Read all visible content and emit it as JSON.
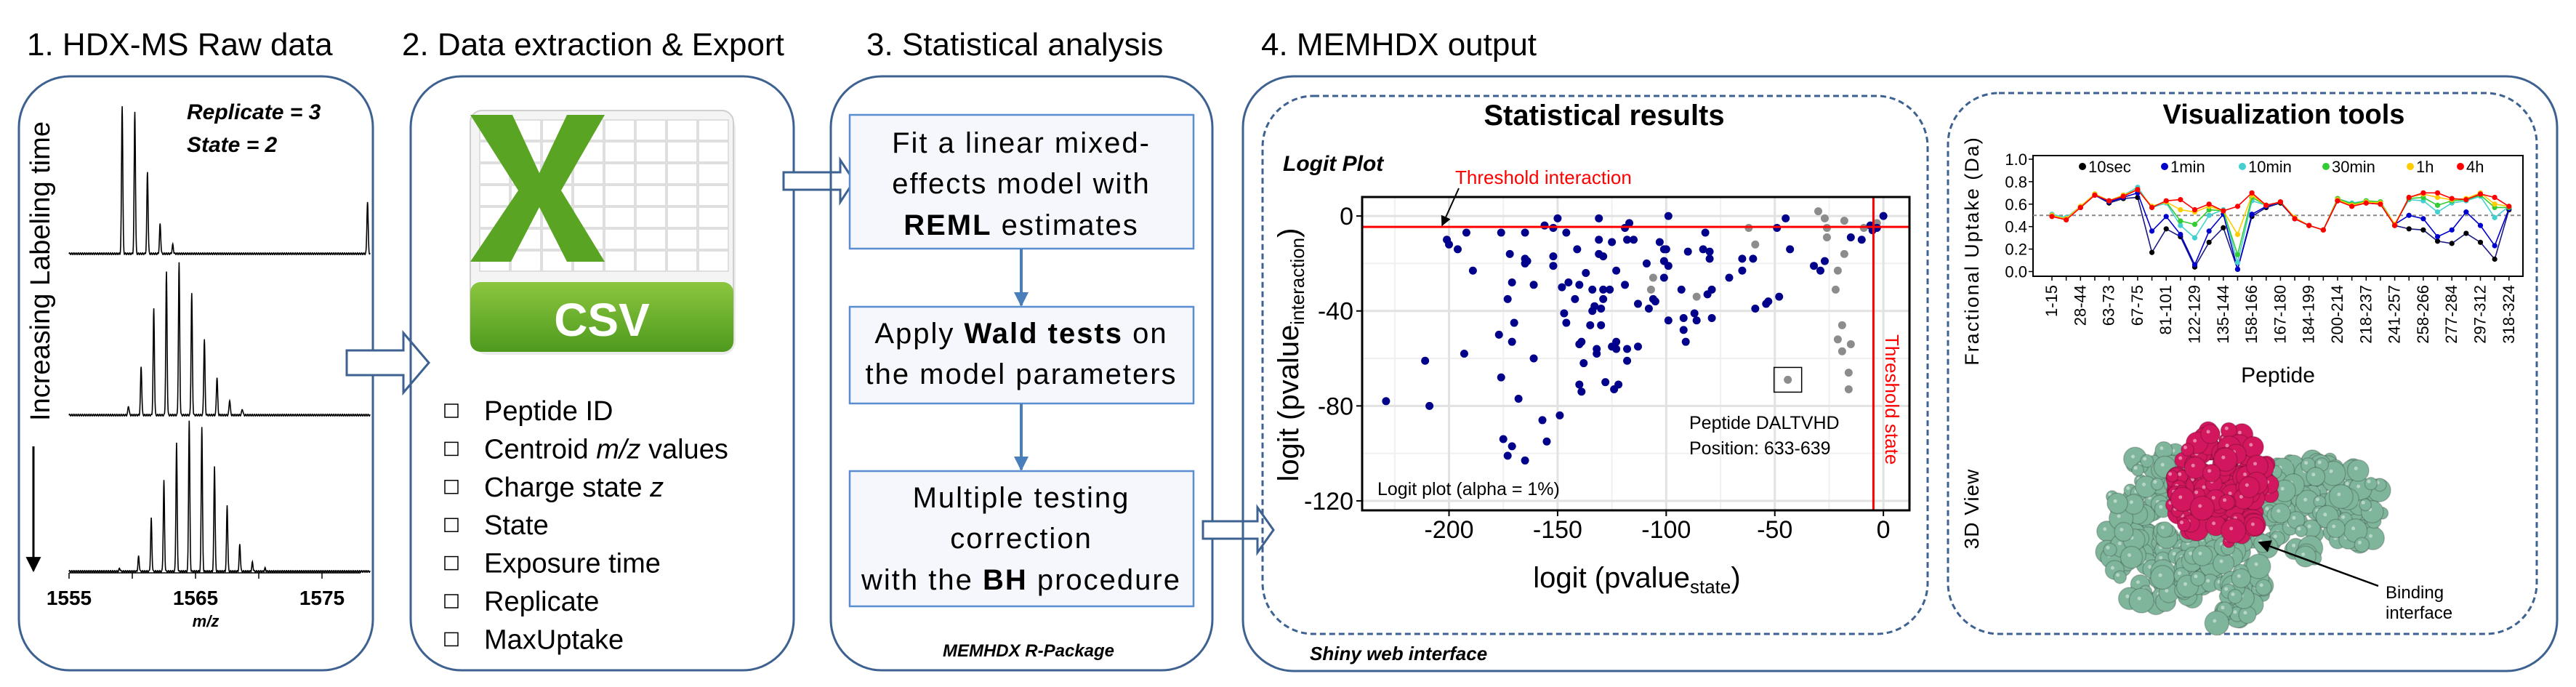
{
  "panels": {
    "raw": {
      "title": "1. HDX-MS Raw data",
      "side_label": "Increasing Labeling time",
      "replicate": "Replicate = 3",
      "state": "State = 2",
      "x_ticks": [
        "1555",
        "1565",
        "1575"
      ],
      "x_label": "m/z"
    },
    "extract": {
      "title": "2. Data extraction & Export",
      "icon_label": "CSV",
      "fields": [
        {
          "pre": "Peptide ID",
          "it": "",
          "post": ""
        },
        {
          "pre": "Centroid ",
          "it": "m/z",
          "post": " values"
        },
        {
          "pre": "Charge state ",
          "it": "z",
          "post": ""
        },
        {
          "pre": "State",
          "it": "",
          "post": ""
        },
        {
          "pre": "Exposure time",
          "it": "",
          "post": ""
        },
        {
          "pre": "Replicate",
          "it": "",
          "post": ""
        },
        {
          "pre": "MaxUptake",
          "it": "",
          "post": ""
        }
      ]
    },
    "stats": {
      "title": "3. Statistical analysis",
      "step1": {
        "l1": "Fit a linear mixed-",
        "l2": "effects model with",
        "l3_bold": "REML",
        "l3": " estimates"
      },
      "step2": {
        "l1_pre": "Apply ",
        "l1_bold": "Wald tests",
        "l1_post": " on",
        "l2": "the model parameters"
      },
      "step3": {
        "l1": "Multiple testing",
        "l2": "correction",
        "l3_pre": "with the ",
        "l3_bold": "BH",
        "l3_post": " procedure"
      },
      "footer": "MEMHDX R-Package"
    },
    "output": {
      "title": "4. MEMHDX output",
      "footer": "Shiny web interface",
      "stat_title": "Statistical results",
      "vis_title": "Visualization tools",
      "view3d_label": "3D View",
      "binding_l1": "Binding",
      "binding_l2": "interface",
      "colors": {
        "protein": "#7fb59a",
        "interface": "#d3175f",
        "frame": "#3d6190"
      }
    }
  },
  "chart_data": [
    {
      "type": "scatter",
      "title": "Logit Plot",
      "xlabel_main": "logit (pvalue",
      "xlabel_sub": "state",
      "xlabel_end": ")",
      "ylabel_main": "logit (pvalue",
      "ylabel_sub": "interaction",
      "ylabel_end": ")",
      "xlim": [
        -240,
        12
      ],
      "ylim": [
        -124,
        8
      ],
      "x_ticks": [
        -200,
        -150,
        -100,
        -50,
        0
      ],
      "y_ticks": [
        0,
        -40,
        -80,
        -120
      ],
      "x_tick_labels": [
        "-200",
        "-150",
        "-100",
        "-50",
        "0"
      ],
      "y_tick_labels": [
        "0",
        "-40",
        "-80",
        "-120"
      ],
      "grid": true,
      "threshold_interaction": -4.6,
      "threshold_state": -4.6,
      "threshold_interaction_label": "Threshold interaction",
      "threshold_state_label": "Threshold state",
      "annotation_l1": "Peptide DALTVHD",
      "annotation_l2": "Position: 633-639",
      "highlight": [
        -44,
        -69
      ],
      "note": "Logit plot (alpha = 1%)",
      "colors": {
        "significant": "#00008b",
        "not_significant": "#8c8c8c",
        "threshold": "#ff0000"
      },
      "significant": [
        [
          -229,
          -78
        ],
        [
          -211,
          -61
        ],
        [
          -209,
          -80
        ],
        [
          -201,
          -10
        ],
        [
          -200,
          -12
        ],
        [
          -196,
          -14
        ],
        [
          -192,
          -7
        ],
        [
          -189,
          -23
        ],
        [
          -193,
          -58
        ],
        [
          -177,
          -50
        ],
        [
          -176,
          -7
        ],
        [
          -176,
          -68
        ],
        [
          -175,
          -94
        ],
        [
          -173,
          -101
        ],
        [
          -171,
          -97
        ],
        [
          -173,
          -35
        ],
        [
          -172,
          -16
        ],
        [
          -171,
          -28
        ],
        [
          -171,
          -53
        ],
        [
          -170,
          -45
        ],
        [
          -168,
          -77
        ],
        [
          -165,
          -18
        ],
        [
          -165,
          -7
        ],
        [
          -165,
          -20
        ],
        [
          -164,
          -19
        ],
        [
          -165,
          -103
        ],
        [
          -161,
          -29
        ],
        [
          -161,
          -60
        ],
        [
          -157,
          -86
        ],
        [
          -156,
          -4
        ],
        [
          -155,
          -95
        ],
        [
          -152,
          -17
        ],
        [
          -152,
          -5
        ],
        [
          -152,
          -21
        ],
        [
          -150,
          -1
        ],
        [
          -149,
          -84
        ],
        [
          -148,
          -30
        ],
        [
          -147,
          -41
        ],
        [
          -146,
          -45
        ],
        [
          -146,
          -7
        ],
        [
          -145,
          -28
        ],
        [
          -142,
          -35
        ],
        [
          -141,
          -14
        ],
        [
          -140,
          -29
        ],
        [
          -140,
          -54
        ],
        [
          -140,
          -71
        ],
        [
          -139,
          -74
        ],
        [
          -139,
          -53
        ],
        [
          -138,
          -62
        ],
        [
          -137,
          -24
        ],
        [
          -135,
          -46
        ],
        [
          -134,
          -31
        ],
        [
          -134,
          -40
        ],
        [
          -133,
          -38
        ],
        [
          -132,
          -58
        ],
        [
          -132,
          -56
        ],
        [
          -131,
          -1
        ],
        [
          -131,
          -10
        ],
        [
          -130,
          -39
        ],
        [
          -130,
          -46
        ],
        [
          -131,
          -16
        ],
        [
          -129,
          -17
        ],
        [
          -129,
          -35
        ],
        [
          -129,
          -31
        ],
        [
          -128,
          -70
        ],
        [
          -126,
          -31
        ],
        [
          -125,
          -11
        ],
        [
          -125,
          -55
        ],
        [
          -124,
          -73
        ],
        [
          -123,
          -23
        ],
        [
          -123,
          -53
        ],
        [
          -123,
          -56
        ],
        [
          -122,
          -71
        ],
        [
          -119,
          -5
        ],
        [
          -119,
          -29
        ],
        [
          -118,
          -61
        ],
        [
          -118,
          -56
        ],
        [
          -118,
          -10
        ],
        [
          -117,
          -3
        ],
        [
          -115,
          -10
        ],
        [
          -113,
          -37
        ],
        [
          -113,
          -55
        ],
        [
          -109,
          -20
        ],
        [
          -108,
          -39
        ],
        [
          -106,
          -35
        ],
        [
          -105,
          -36
        ],
        [
          -103,
          -11
        ],
        [
          -101,
          -26
        ],
        [
          -101,
          -14
        ],
        [
          -101,
          -19
        ],
        [
          -100,
          -14
        ],
        [
          -99,
          0
        ],
        [
          -99,
          -21
        ],
        [
          -99,
          -44
        ],
        [
          -93,
          -31
        ],
        [
          -92,
          -43
        ],
        [
          -92,
          -48
        ],
        [
          -91,
          -53
        ],
        [
          -90,
          -15
        ],
        [
          -87,
          -41
        ],
        [
          -86,
          -44
        ],
        [
          -83,
          -14
        ],
        [
          -82,
          -7
        ],
        [
          -81,
          -33
        ],
        [
          -80,
          -15
        ],
        [
          -80,
          -18
        ],
        [
          -79,
          -31
        ],
        [
          -79,
          -43
        ],
        [
          -71,
          -26
        ],
        [
          -65,
          -23
        ],
        [
          -65,
          -18
        ],
        [
          -60,
          -18
        ],
        [
          -59,
          -39
        ],
        [
          -54,
          -37
        ],
        [
          -53,
          -36
        ],
        [
          -48,
          -34
        ],
        [
          -49,
          -5
        ],
        [
          -45,
          -1
        ],
        [
          -43,
          -14
        ],
        [
          -32,
          -21
        ],
        [
          -29,
          -23
        ],
        [
          -27,
          -19
        ],
        [
          -15,
          -9
        ],
        [
          -10,
          -10
        ],
        [
          -6,
          -4
        ],
        [
          -5,
          -6
        ],
        [
          -3,
          -5
        ],
        [
          0,
          0
        ]
      ],
      "not_significant": [
        [
          -62,
          -5
        ],
        [
          -59,
          -12
        ],
        [
          -106,
          -26
        ],
        [
          -107,
          -31
        ],
        [
          -86,
          -34
        ],
        [
          -44,
          -69
        ],
        [
          -30,
          2
        ],
        [
          -27,
          -1
        ],
        [
          -18,
          -2
        ],
        [
          -26,
          -5
        ],
        [
          -26,
          -9
        ],
        [
          -18,
          -16
        ],
        [
          -21,
          -23
        ],
        [
          -22,
          -31
        ],
        [
          -19,
          -46
        ],
        [
          -21,
          -52
        ],
        [
          -19,
          -57
        ],
        [
          -15,
          -54
        ],
        [
          -16,
          -66
        ],
        [
          -16,
          -73
        ],
        [
          -9,
          -5
        ],
        [
          -3,
          -3
        ]
      ]
    },
    {
      "type": "line",
      "xlabel": "Peptide",
      "ylabel": "Fractional Uptake (Da)",
      "ylim": [
        0,
        1
      ],
      "y_ticks": [
        "0.0",
        "0.2",
        "0.4",
        "0.6",
        "0.8",
        "1.0"
      ],
      "reference_line": 0.5,
      "legend_position": "top",
      "categories": [
        "1-15",
        "",
        "28-44",
        "",
        "63-73",
        "",
        "67-75",
        "",
        "81-101",
        "",
        "122-129",
        "",
        "135-144",
        "",
        "158-166",
        "",
        "167-180",
        "",
        "184-199",
        "",
        "200-214",
        "",
        "218-237",
        "",
        "241-257",
        "",
        "258-266",
        "",
        "277-284",
        "",
        "297-312",
        "",
        "318-324"
      ],
      "series": [
        {
          "name": "10sec",
          "color": "#000000",
          "line": "#1a1a80",
          "values": [
            0.5,
            0.47,
            0.57,
            0.68,
            0.61,
            0.65,
            0.66,
            0.17,
            0.38,
            0.31,
            0.04,
            0.26,
            0.39,
            0.02,
            0.49,
            0.57,
            0.61,
            0.47,
            0.41,
            0.37,
            0.63,
            0.59,
            0.61,
            0.6,
            0.41,
            0.38,
            0.37,
            0.27,
            0.25,
            0.34,
            0.26,
            0.11,
            0.55
          ]
        },
        {
          "name": "1min",
          "color": "#0000cc",
          "line": "#0000cc",
          "values": [
            0.5,
            0.47,
            0.57,
            0.68,
            0.62,
            0.66,
            0.7,
            0.36,
            0.49,
            0.33,
            0.06,
            0.36,
            0.51,
            0.02,
            0.51,
            0.58,
            0.62,
            0.47,
            0.41,
            0.37,
            0.63,
            0.59,
            0.62,
            0.61,
            0.42,
            0.5,
            0.47,
            0.31,
            0.37,
            0.53,
            0.41,
            0.23,
            0.56
          ]
        },
        {
          "name": "10min",
          "color": "#45d0d0",
          "line": "#45d0d0",
          "values": [
            0.51,
            0.48,
            0.58,
            0.69,
            0.63,
            0.68,
            0.75,
            0.57,
            0.61,
            0.41,
            0.3,
            0.5,
            0.55,
            0.08,
            0.63,
            0.59,
            0.62,
            0.48,
            0.41,
            0.37,
            0.65,
            0.61,
            0.63,
            0.62,
            0.42,
            0.64,
            0.63,
            0.53,
            0.61,
            0.63,
            0.67,
            0.48,
            0.58
          ]
        },
        {
          "name": "30min",
          "color": "#33cc33",
          "line": "#33cc33",
          "values": [
            0.5,
            0.47,
            0.58,
            0.69,
            0.63,
            0.68,
            0.73,
            0.58,
            0.62,
            0.45,
            0.42,
            0.55,
            0.54,
            0.15,
            0.66,
            0.59,
            0.62,
            0.48,
            0.41,
            0.37,
            0.65,
            0.6,
            0.63,
            0.62,
            0.42,
            0.65,
            0.66,
            0.59,
            0.63,
            0.64,
            0.68,
            0.57,
            0.57
          ]
        },
        {
          "name": "1h",
          "color": "#ffcc00",
          "line": "#ffcc00",
          "values": [
            0.5,
            0.47,
            0.58,
            0.69,
            0.63,
            0.68,
            0.73,
            0.58,
            0.62,
            0.55,
            0.53,
            0.58,
            0.54,
            0.33,
            0.68,
            0.59,
            0.62,
            0.48,
            0.41,
            0.37,
            0.64,
            0.59,
            0.62,
            0.61,
            0.42,
            0.66,
            0.69,
            0.66,
            0.64,
            0.65,
            0.7,
            0.6,
            0.58
          ]
        },
        {
          "name": "4h",
          "color": "#ff0000",
          "line": "#ff0000",
          "values": [
            0.49,
            0.46,
            0.57,
            0.68,
            0.63,
            0.67,
            0.73,
            0.57,
            0.63,
            0.64,
            0.55,
            0.6,
            0.54,
            0.58,
            0.7,
            0.59,
            0.62,
            0.47,
            0.41,
            0.37,
            0.63,
            0.58,
            0.61,
            0.6,
            0.41,
            0.66,
            0.7,
            0.7,
            0.65,
            0.64,
            0.69,
            0.66,
            0.58
          ]
        }
      ]
    }
  ]
}
